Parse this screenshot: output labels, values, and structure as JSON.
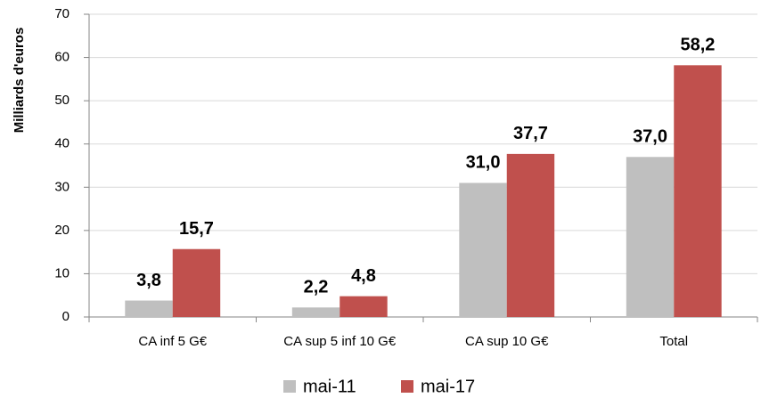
{
  "chart_data": {
    "type": "bar",
    "y_label": "Milliards d'euros",
    "categories": [
      "CA inf 5 G€",
      "CA sup 5 inf 10 G€",
      "CA sup 10 G€",
      "Total"
    ],
    "series": [
      {
        "name": "mai-11",
        "color": "#bfbfbf",
        "values": [
          3.8,
          2.2,
          31.0,
          37.0
        ],
        "value_labels": [
          "3,8",
          "2,2",
          "31,0",
          "37,0"
        ]
      },
      {
        "name": "mai-17",
        "color": "#c0504d",
        "values": [
          15.7,
          4.8,
          37.7,
          58.2
        ],
        "value_labels": [
          "15,7",
          "4,8",
          "37,7",
          "58,2"
        ]
      }
    ],
    "ylim": [
      0,
      70
    ],
    "yticks": [
      0,
      10,
      20,
      30,
      40,
      50,
      60,
      70
    ],
    "grid": true,
    "legend": "bottom"
  }
}
